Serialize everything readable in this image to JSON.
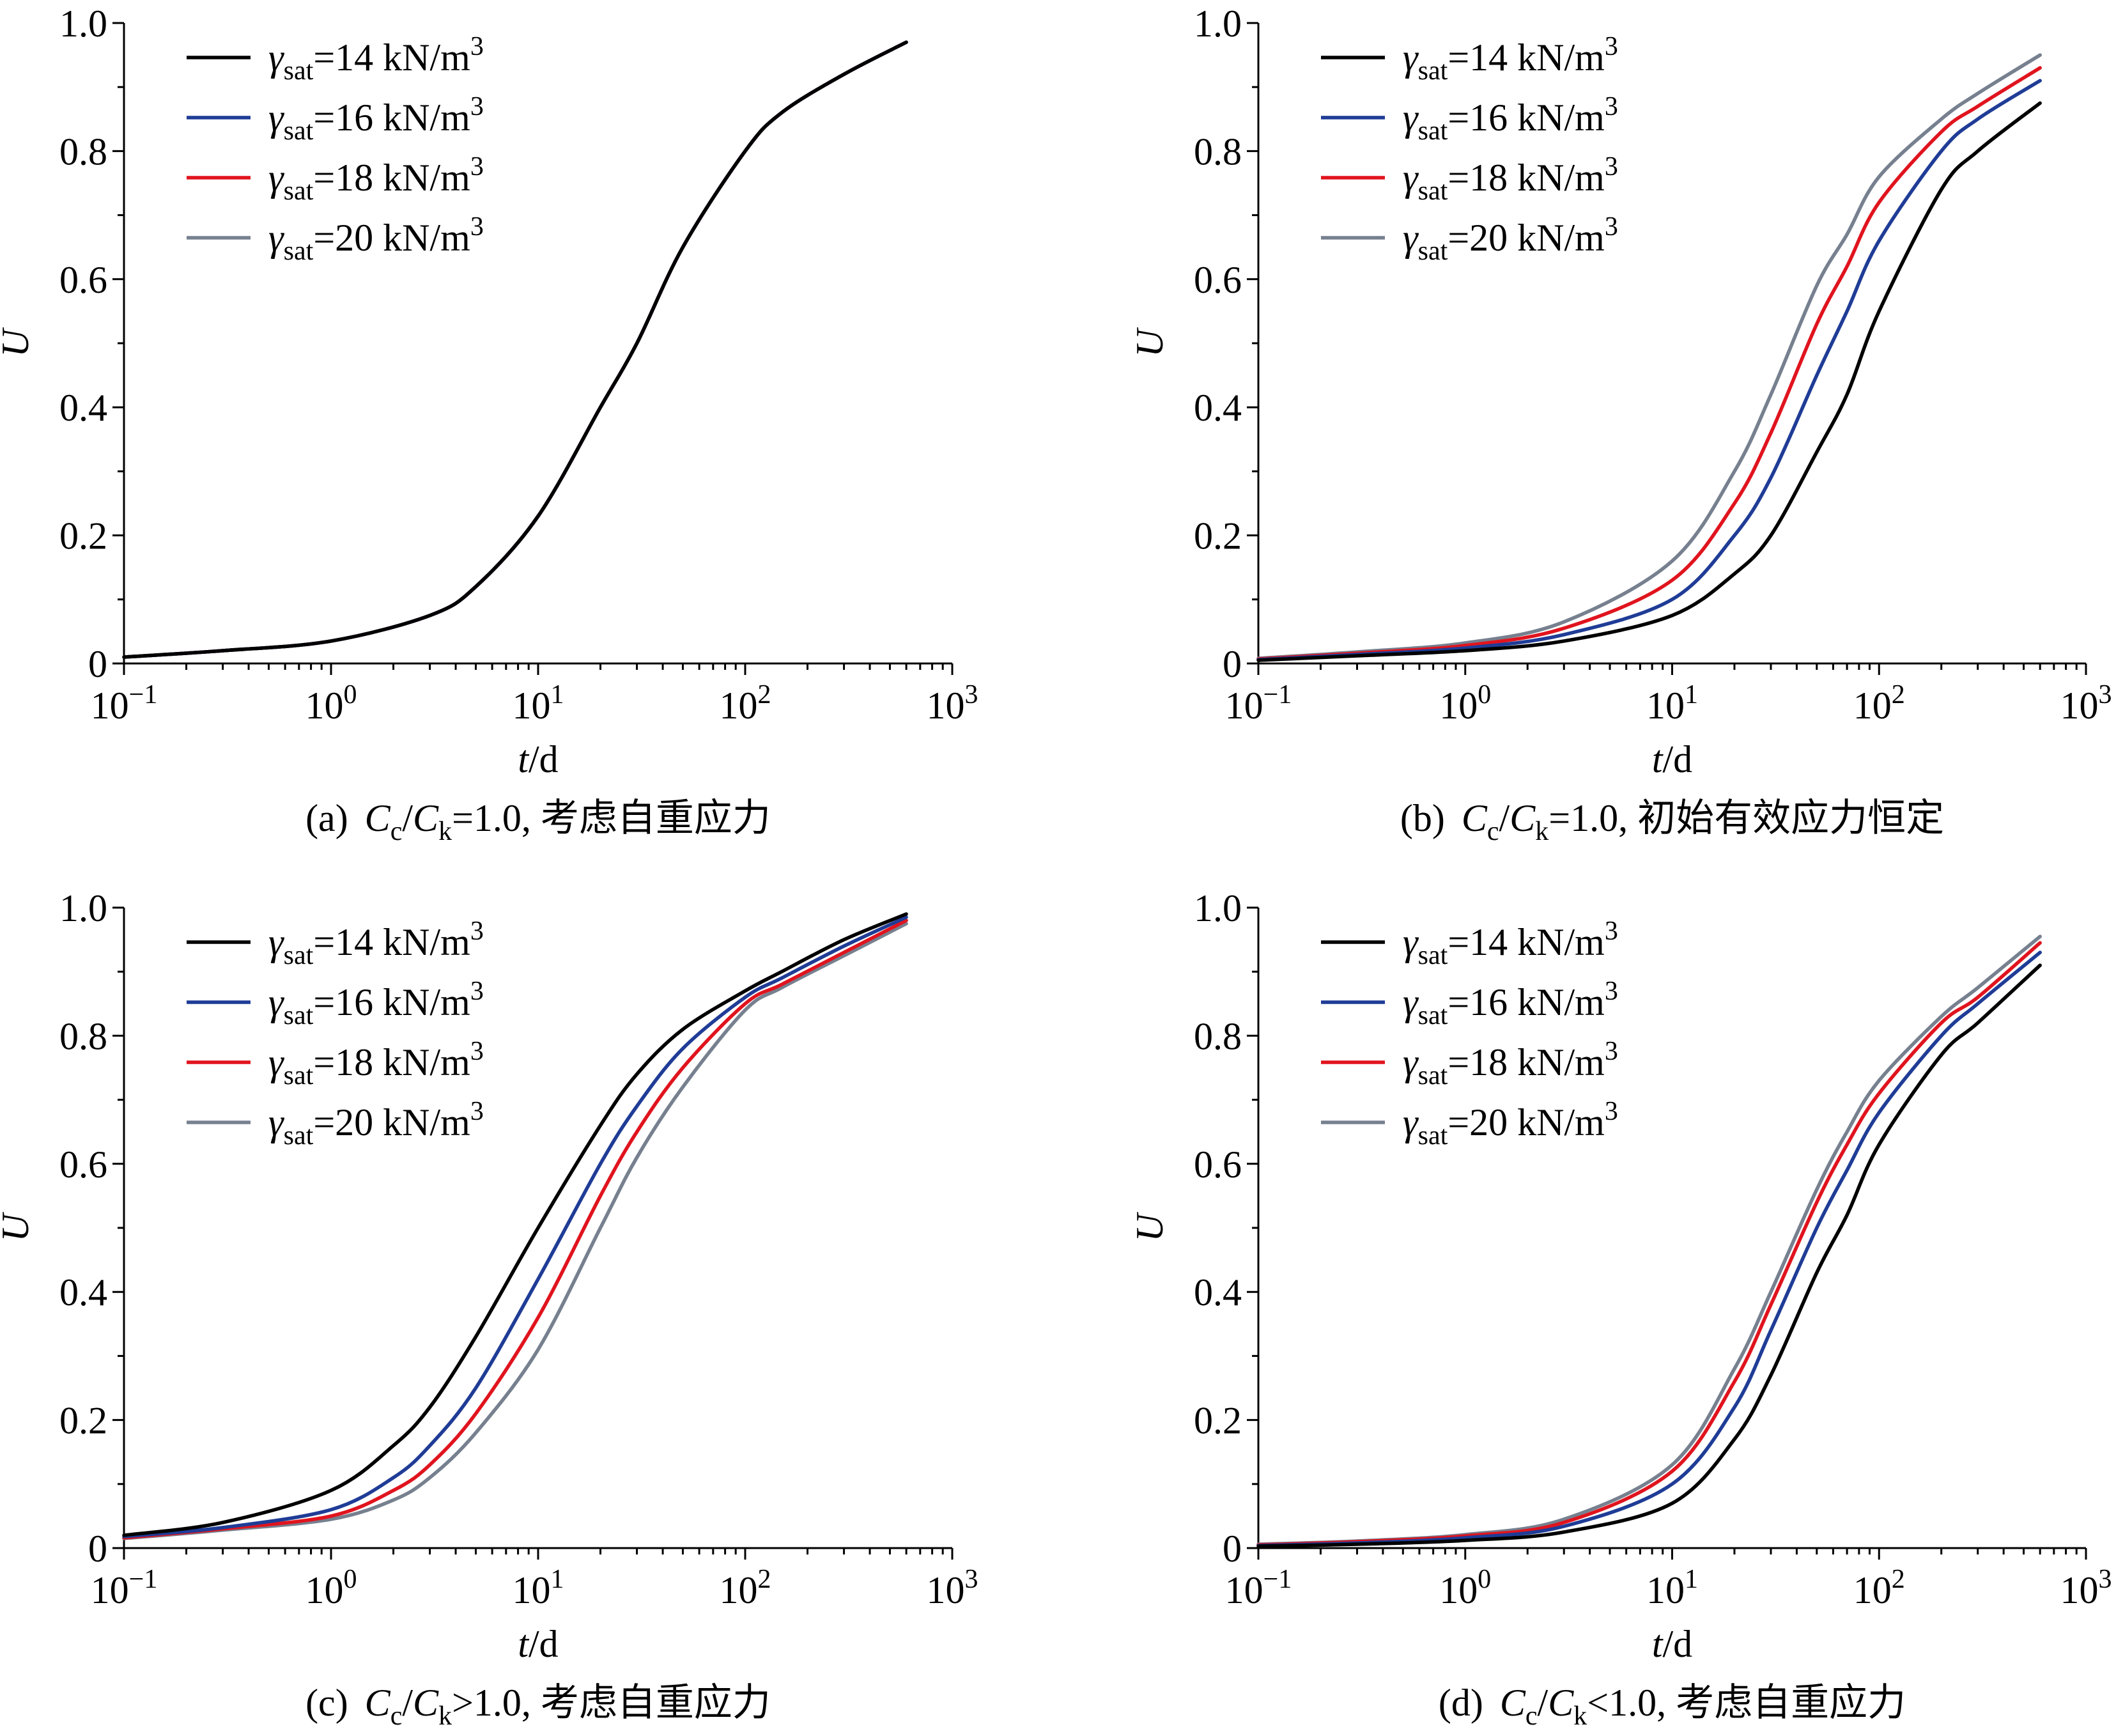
{
  "figure": {
    "series_names": [
      "14",
      "16",
      "18",
      "20"
    ],
    "legend_label": {
      "gamma": "γ",
      "sub": "sat",
      "eq": "=",
      "unit": " kN/m",
      "exp": "3"
    },
    "x_tick_labels": [
      {
        "base": "10",
        "exp": "−1"
      },
      {
        "base": "10",
        "exp": "0"
      },
      {
        "base": "10",
        "exp": "1"
      },
      {
        "base": "10",
        "exp": "2"
      },
      {
        "base": "10",
        "exp": "3"
      }
    ],
    "y_tick_labels": [
      "0",
      "0.2",
      "0.4",
      "0.6",
      "0.8",
      "1.0"
    ],
    "xlabel": {
      "var": "t",
      "sep": "/",
      "unit": "d"
    },
    "ylabel": "U"
  },
  "colors": {
    "series": [
      "#000000",
      "#1f3c96",
      "#e0141e",
      "#76808f"
    ]
  },
  "chart_data": [
    {
      "type": "line",
      "caption": {
        "id": "(a)",
        "c1": "C",
        "s1": "c",
        "slash": "/",
        "c2": "C",
        "s2": "k",
        "rel": "=",
        "val": "1.0",
        "tail": ", 考虑自重应力"
      },
      "xlabel": "t / d",
      "ylabel": "U",
      "xscale": "log",
      "xlim": [
        0.1,
        1000
      ],
      "ylim": [
        0,
        1.0
      ],
      "legend_position": "top-left",
      "x": [
        0.1,
        0.3,
        1,
        3,
        5,
        10,
        20,
        30,
        50,
        100,
        150,
        300,
        600
      ],
      "series": [
        {
          "name": "14",
          "values": [
            0.01,
            0.02,
            0.035,
            0.075,
            0.12,
            0.23,
            0.4,
            0.5,
            0.65,
            0.8,
            0.86,
            0.92,
            0.97
          ]
        },
        {
          "name": "16",
          "values": [
            0.01,
            0.02,
            0.035,
            0.075,
            0.12,
            0.23,
            0.4,
            0.5,
            0.65,
            0.8,
            0.86,
            0.92,
            0.97
          ]
        },
        {
          "name": "18",
          "values": [
            0.01,
            0.02,
            0.035,
            0.075,
            0.12,
            0.23,
            0.4,
            0.5,
            0.65,
            0.8,
            0.86,
            0.92,
            0.97
          ]
        },
        {
          "name": "20",
          "values": [
            0.01,
            0.02,
            0.035,
            0.075,
            0.12,
            0.23,
            0.4,
            0.5,
            0.65,
            0.8,
            0.86,
            0.92,
            0.97
          ]
        }
      ]
    },
    {
      "type": "line",
      "caption": {
        "id": "(b)",
        "c1": "C",
        "s1": "c",
        "slash": "/",
        "c2": "C",
        "s2": "k",
        "rel": "=",
        "val": "1.0",
        "tail": ", 初始有效应力恒定"
      },
      "xlabel": "t / d",
      "ylabel": "U",
      "xscale": "log",
      "xlim": [
        0.1,
        1000
      ],
      "ylim": [
        0,
        1.0
      ],
      "legend_position": "top-left",
      "x": [
        0.1,
        0.3,
        1,
        3,
        10,
        20,
        30,
        50,
        70,
        100,
        200,
        300,
        600
      ],
      "series": [
        {
          "name": "14",
          "values": [
            0.005,
            0.012,
            0.02,
            0.035,
            0.075,
            0.14,
            0.2,
            0.33,
            0.42,
            0.55,
            0.74,
            0.8,
            0.875
          ]
        },
        {
          "name": "16",
          "values": [
            0.006,
            0.014,
            0.024,
            0.045,
            0.1,
            0.2,
            0.29,
            0.45,
            0.55,
            0.66,
            0.8,
            0.85,
            0.91
          ]
        },
        {
          "name": "18",
          "values": [
            0.007,
            0.016,
            0.028,
            0.055,
            0.13,
            0.25,
            0.36,
            0.53,
            0.62,
            0.72,
            0.83,
            0.87,
            0.93
          ]
        },
        {
          "name": "20",
          "values": [
            0.008,
            0.018,
            0.032,
            0.065,
            0.16,
            0.3,
            0.42,
            0.59,
            0.67,
            0.76,
            0.85,
            0.89,
            0.95
          ]
        }
      ]
    },
    {
      "type": "line",
      "caption": {
        "id": "(c)",
        "c1": "C",
        "s1": "c",
        "slash": "/",
        "c2": "C",
        "s2": "k",
        "rel": ">",
        "val": "1.0",
        "tail": ", 考虑自重应力"
      },
      "xlabel": "t / d",
      "ylabel": "U",
      "xscale": "log",
      "xlim": [
        0.1,
        1000
      ],
      "ylim": [
        0,
        1.0
      ],
      "legend_position": "top-left",
      "x": [
        0.1,
        0.3,
        1,
        2,
        3,
        5,
        10,
        20,
        30,
        50,
        100,
        150,
        300,
        600
      ],
      "series": [
        {
          "name": "14",
          "values": [
            0.02,
            0.04,
            0.09,
            0.16,
            0.22,
            0.33,
            0.5,
            0.66,
            0.74,
            0.81,
            0.87,
            0.9,
            0.95,
            0.99
          ]
        },
        {
          "name": "16",
          "values": [
            0.018,
            0.032,
            0.06,
            0.11,
            0.16,
            0.25,
            0.42,
            0.6,
            0.69,
            0.78,
            0.86,
            0.89,
            0.94,
            0.985
          ]
        },
        {
          "name": "18",
          "values": [
            0.016,
            0.03,
            0.05,
            0.09,
            0.13,
            0.21,
            0.36,
            0.55,
            0.65,
            0.75,
            0.85,
            0.88,
            0.93,
            0.98
          ]
        },
        {
          "name": "20",
          "values": [
            0.015,
            0.028,
            0.045,
            0.075,
            0.11,
            0.18,
            0.31,
            0.5,
            0.61,
            0.72,
            0.84,
            0.875,
            0.925,
            0.975
          ]
        }
      ]
    },
    {
      "type": "line",
      "caption": {
        "id": "(d)",
        "c1": "C",
        "s1": "c",
        "slash": "/",
        "c2": "C",
        "s2": "k",
        "rel": "<",
        "val": "1.0",
        "tail": ", 考虑自重应力"
      },
      "xlabel": "t / d",
      "ylabel": "U",
      "xscale": "log",
      "xlim": [
        0.1,
        1000
      ],
      "ylim": [
        0,
        1.0
      ],
      "legend_position": "top-left",
      "x": [
        0.1,
        0.3,
        1,
        3,
        10,
        20,
        30,
        50,
        70,
        100,
        200,
        300,
        600
      ],
      "series": [
        {
          "name": "14",
          "values": [
            0.003,
            0.006,
            0.012,
            0.025,
            0.07,
            0.17,
            0.27,
            0.43,
            0.52,
            0.63,
            0.77,
            0.82,
            0.91
          ]
        },
        {
          "name": "16",
          "values": [
            0.004,
            0.008,
            0.016,
            0.034,
            0.1,
            0.22,
            0.34,
            0.5,
            0.59,
            0.68,
            0.8,
            0.85,
            0.93
          ]
        },
        {
          "name": "18",
          "values": [
            0.005,
            0.01,
            0.019,
            0.04,
            0.12,
            0.26,
            0.38,
            0.54,
            0.63,
            0.71,
            0.82,
            0.86,
            0.945
          ]
        },
        {
          "name": "20",
          "values": [
            0.006,
            0.011,
            0.021,
            0.045,
            0.13,
            0.28,
            0.4,
            0.56,
            0.65,
            0.73,
            0.83,
            0.875,
            0.955
          ]
        }
      ]
    }
  ]
}
